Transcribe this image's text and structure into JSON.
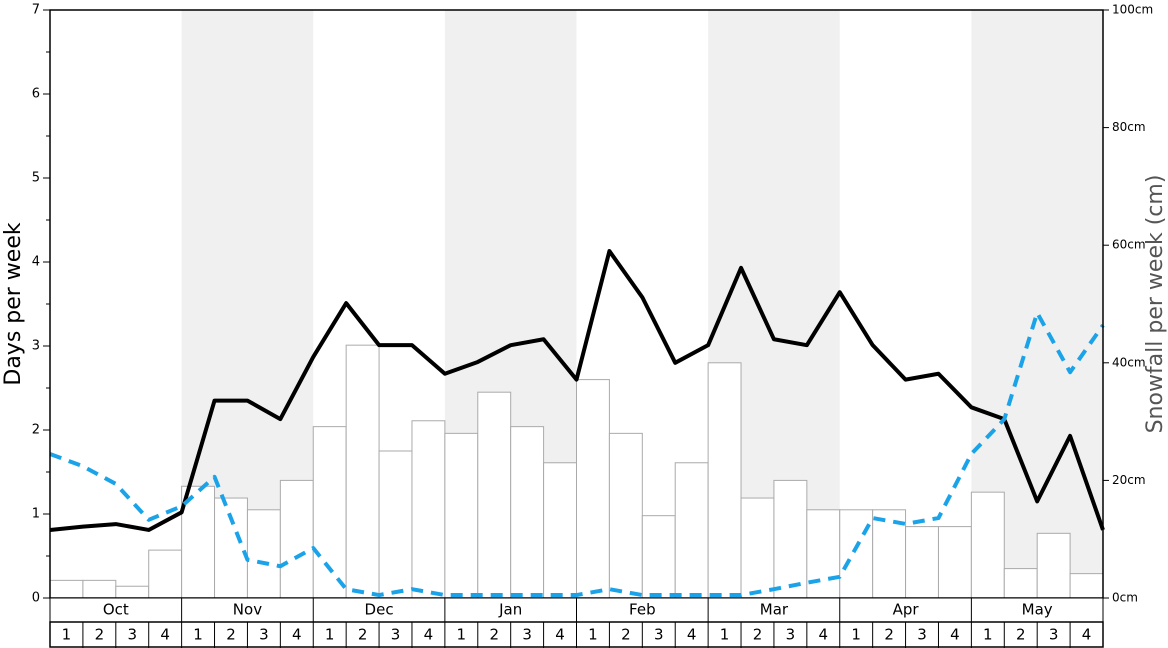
{
  "chart_data": {
    "type": "combo",
    "y_label": "Days per week",
    "y2_label": "Snowfall per week (cm)",
    "months": [
      "Oct",
      "Nov",
      "Dec",
      "Jan",
      "Feb",
      "Mar",
      "Apr",
      "May"
    ],
    "weeks": [
      "1",
      "2",
      "3",
      "4",
      "1",
      "2",
      "3",
      "4",
      "1",
      "2",
      "3",
      "4",
      "1",
      "2",
      "3",
      "4",
      "1",
      "2",
      "3",
      "4",
      "1",
      "2",
      "3",
      "4",
      "1",
      "2",
      "3",
      "4",
      "1",
      "2",
      "3",
      "4"
    ],
    "bars": {
      "color": "#ffffff",
      "values": [
        0.21,
        0.21,
        0.14,
        0.57,
        1.33,
        1.19,
        1.05,
        1.4,
        2.04,
        3.01,
        1.75,
        2.11,
        1.96,
        2.45,
        2.04,
        1.61,
        2.6,
        1.96,
        0.98,
        1.61,
        2.8,
        1.19,
        1.4,
        1.05,
        1.05,
        1.05,
        0.85,
        0.85,
        1.26,
        0.35,
        0.77,
        0.29
      ]
    },
    "x": [
      0,
      1,
      2,
      3,
      4,
      5,
      6,
      7,
      8,
      9,
      10,
      11,
      12,
      13,
      14,
      15,
      16,
      17,
      18,
      19,
      20,
      21,
      22,
      23,
      24,
      25,
      26,
      27,
      28,
      29,
      30,
      31,
      32
    ],
    "xlim": [
      0,
      32
    ],
    "series": [
      {
        "color": "#000000",
        "values": [
          0.81,
          0.85,
          0.88,
          0.81,
          1.02,
          2.35,
          2.35,
          2.13,
          2.87,
          3.51,
          3.01,
          3.01,
          2.67,
          2.81,
          3.01,
          3.08,
          2.6,
          4.13,
          3.58,
          2.8,
          3.01,
          3.93,
          3.08,
          3.01,
          3.64,
          3.01,
          2.6,
          2.67,
          2.27,
          2.13,
          1.15,
          1.93,
          0.81
        ]
      },
      {
        "color": "#1aa3e8",
        "axis": "y2",
        "dashed": true,
        "values": [
          24.5,
          22.4,
          19.4,
          13.3,
          15.6,
          20.6,
          6.5,
          5.4,
          8.5,
          1.5,
          0.5,
          1.5,
          0.5,
          0.5,
          0.5,
          0.5,
          0.5,
          1.5,
          0.5,
          0.5,
          0.5,
          0.5,
          1.5,
          2.6,
          3.6,
          13.6,
          12.6,
          13.6,
          24.5,
          30.4,
          48.5,
          38.4,
          46.4
        ]
      }
    ],
    "ylim": [
      0,
      7
    ],
    "yticks": [
      0,
      1,
      2,
      3,
      4,
      5,
      6,
      7
    ],
    "y2lim": [
      0,
      100
    ],
    "y2ticks": [
      {
        "value": 0,
        "label": "0cm"
      },
      {
        "value": 20,
        "label": "20cm"
      },
      {
        "value": 40,
        "label": "40cm"
      },
      {
        "value": 60,
        "label": "60cm"
      },
      {
        "value": 80,
        "label": "80cm"
      },
      {
        "value": 100,
        "label": "100cm"
      }
    ]
  }
}
